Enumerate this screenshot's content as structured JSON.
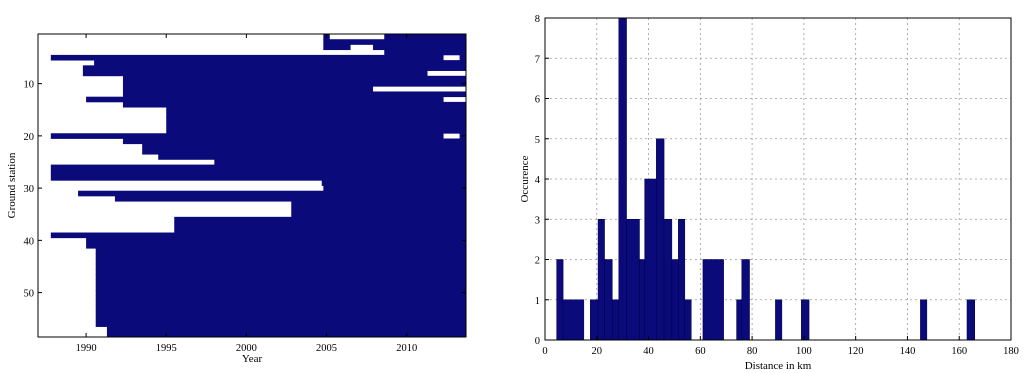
{
  "chart_data": [
    {
      "type": "heatmap",
      "title": "",
      "xlabel": "Year",
      "ylabel": "Ground station",
      "xlim": [
        1987,
        2013.7
      ],
      "ylim": [
        0.5,
        58.5
      ],
      "y_inverted": true,
      "grid": false,
      "xticks": [
        1990,
        1995,
        2000,
        2005,
        2010
      ],
      "xtick_labels": [
        "1990",
        "1995",
        "2000",
        "2005",
        "2010"
      ],
      "yticks": [
        10,
        20,
        30,
        40,
        50
      ],
      "ytick_labels": [
        "10",
        "20",
        "30",
        "40",
        "50"
      ],
      "fill_color": "#0a0a7a",
      "description_of_values": "Each row is a ground station; filled intervals are years with data.",
      "rows": [
        {
          "station": 1,
          "intervals": [
            [
              2004.8,
              2005.2
            ],
            [
              2008.6,
              2013.7
            ]
          ]
        },
        {
          "station": 2,
          "intervals": [
            [
              2004.8,
              2013.7
            ]
          ]
        },
        {
          "station": 3,
          "intervals": [
            [
              2004.8,
              2006.5
            ],
            [
              2007.9,
              2013.7
            ]
          ]
        },
        {
          "station": 4,
          "intervals": [
            [
              2008.6,
              2013.7
            ]
          ]
        },
        {
          "station": 5,
          "intervals": [
            [
              1987.8,
              2012.3
            ],
            [
              2013.3,
              2013.7
            ]
          ]
        },
        {
          "station": 6,
          "intervals": [
            [
              1990.5,
              2013.7
            ]
          ]
        },
        {
          "station": 7,
          "intervals": [
            [
              1989.8,
              2013.7
            ]
          ]
        },
        {
          "station": 8,
          "intervals": [
            [
              1989.8,
              2011.3
            ]
          ]
        },
        {
          "station": 9,
          "intervals": [
            [
              1992.3,
              2011.3
            ],
            [
              2011.3,
              2013.7
            ]
          ]
        },
        {
          "station": 10,
          "intervals": [
            [
              1992.3,
              2013.7
            ]
          ]
        },
        {
          "station": 11,
          "intervals": [
            [
              1992.3,
              2007.9
            ]
          ]
        },
        {
          "station": 12,
          "intervals": [
            [
              1992.3,
              2013.7
            ]
          ]
        },
        {
          "station": 13,
          "intervals": [
            [
              1990.0,
              2012.3
            ]
          ]
        },
        {
          "station": 14,
          "intervals": [
            [
              1992.3,
              2013.7
            ]
          ]
        },
        {
          "station": 15,
          "intervals": [
            [
              1995.0,
              2013.7
            ]
          ]
        },
        {
          "station": 16,
          "intervals": [
            [
              1995.0,
              2013.7
            ]
          ]
        },
        {
          "station": 17,
          "intervals": [
            [
              1995.0,
              2013.7
            ]
          ]
        },
        {
          "station": 18,
          "intervals": [
            [
              1995.0,
              2013.7
            ]
          ]
        },
        {
          "station": 19,
          "intervals": [
            [
              1995.0,
              2013.7
            ]
          ]
        },
        {
          "station": 20,
          "intervals": [
            [
              1987.8,
              2012.3
            ],
            [
              2013.3,
              2013.7
            ]
          ]
        },
        {
          "station": 21,
          "intervals": [
            [
              1992.3,
              2013.7
            ]
          ]
        },
        {
          "station": 22,
          "intervals": [
            [
              1993.5,
              2013.7
            ]
          ]
        },
        {
          "station": 23,
          "intervals": [
            [
              1993.5,
              2013.7
            ]
          ]
        },
        {
          "station": 24,
          "intervals": [
            [
              1994.5,
              2013.7
            ]
          ]
        },
        {
          "station": 25,
          "intervals": [
            [
              1998.0,
              2013.7
            ]
          ]
        },
        {
          "station": 26,
          "intervals": [
            [
              1987.8,
              2013.7
            ]
          ]
        },
        {
          "station": 27,
          "intervals": [
            [
              1987.8,
              2013.7
            ]
          ]
        },
        {
          "station": 28,
          "intervals": [
            [
              1987.8,
              2013.7
            ]
          ]
        },
        {
          "station": 29,
          "intervals": [
            [
              2004.7,
              2013.7
            ]
          ]
        },
        {
          "station": 30,
          "intervals": [
            [
              2004.8,
              2013.7
            ]
          ]
        },
        {
          "station": 31,
          "intervals": [
            [
              1989.5,
              2013.7
            ]
          ]
        },
        {
          "station": 32,
          "intervals": [
            [
              1991.8,
              2013.7
            ]
          ]
        },
        {
          "station": 33,
          "intervals": [
            [
              2002.8,
              2013.7
            ]
          ]
        },
        {
          "station": 34,
          "intervals": [
            [
              2002.8,
              2013.7
            ]
          ]
        },
        {
          "station": 35,
          "intervals": [
            [
              2002.8,
              2013.7
            ]
          ]
        },
        {
          "station": 36,
          "intervals": [
            [
              1995.5,
              2013.7
            ]
          ]
        },
        {
          "station": 37,
          "intervals": [
            [
              1995.5,
              2013.7
            ]
          ]
        },
        {
          "station": 38,
          "intervals": [
            [
              1995.5,
              2013.7
            ]
          ]
        },
        {
          "station": 39,
          "intervals": [
            [
              1987.8,
              2013.7
            ]
          ]
        },
        {
          "station": 40,
          "intervals": [
            [
              1990.0,
              2013.7
            ]
          ]
        },
        {
          "station": 41,
          "intervals": [
            [
              1990.0,
              2013.7
            ]
          ]
        },
        {
          "station": 42,
          "intervals": [
            [
              1990.6,
              2013.7
            ]
          ]
        },
        {
          "station": 43,
          "intervals": [
            [
              1990.6,
              2013.7
            ]
          ]
        },
        {
          "station": 44,
          "intervals": [
            [
              1990.6,
              2013.7
            ]
          ]
        },
        {
          "station": 45,
          "intervals": [
            [
              1990.6,
              2013.7
            ]
          ]
        },
        {
          "station": 46,
          "intervals": [
            [
              1990.6,
              2013.7
            ]
          ]
        },
        {
          "station": 47,
          "intervals": [
            [
              1990.6,
              2013.7
            ]
          ]
        },
        {
          "station": 48,
          "intervals": [
            [
              1990.6,
              2013.7
            ]
          ]
        },
        {
          "station": 49,
          "intervals": [
            [
              1990.6,
              2013.7
            ]
          ]
        },
        {
          "station": 50,
          "intervals": [
            [
              1990.6,
              2013.7
            ]
          ]
        },
        {
          "station": 51,
          "intervals": [
            [
              1990.6,
              2013.7
            ]
          ]
        },
        {
          "station": 52,
          "intervals": [
            [
              1990.6,
              2013.7
            ]
          ]
        },
        {
          "station": 53,
          "intervals": [
            [
              1990.6,
              2013.7
            ]
          ]
        },
        {
          "station": 54,
          "intervals": [
            [
              1990.6,
              2013.7
            ]
          ]
        },
        {
          "station": 55,
          "intervals": [
            [
              1990.6,
              2013.7
            ]
          ]
        },
        {
          "station": 56,
          "intervals": [
            [
              1990.6,
              2013.7
            ]
          ]
        },
        {
          "station": 57,
          "intervals": [
            [
              1991.3,
              2013.7
            ]
          ]
        },
        {
          "station": 58,
          "intervals": [
            [
              1991.3,
              2013.7
            ]
          ]
        }
      ]
    },
    {
      "type": "bar",
      "title": "",
      "xlabel": "Distance in km",
      "ylabel": "Occurence",
      "xlim": [
        0,
        180
      ],
      "ylim": [
        0,
        8
      ],
      "grid": true,
      "xticks": [
        0,
        20,
        40,
        60,
        80,
        100,
        120,
        140,
        160,
        180
      ],
      "xtick_labels": [
        "0",
        "20",
        "40",
        "60",
        "80",
        "100",
        "120",
        "140",
        "160",
        "180"
      ],
      "yticks": [
        0,
        1,
        2,
        3,
        4,
        5,
        6,
        7,
        8
      ],
      "ytick_labels": [
        "0",
        "1",
        "2",
        "3",
        "4",
        "5",
        "6",
        "7",
        "8"
      ],
      "bar_color": "#0a0a7a",
      "bins": [
        {
          "x0": 4.5,
          "x1": 7,
          "value": 2
        },
        {
          "x0": 7,
          "x1": 15,
          "value": 1
        },
        {
          "x0": 17.5,
          "x1": 20.5,
          "value": 1
        },
        {
          "x0": 20.5,
          "x1": 23,
          "value": 3
        },
        {
          "x0": 23,
          "x1": 26,
          "value": 2
        },
        {
          "x0": 26,
          "x1": 28.5,
          "value": 1
        },
        {
          "x0": 28.5,
          "x1": 31.5,
          "value": 8
        },
        {
          "x0": 31.5,
          "x1": 36.5,
          "value": 3
        },
        {
          "x0": 36.5,
          "x1": 38.5,
          "value": 2
        },
        {
          "x0": 38.5,
          "x1": 43,
          "value": 4
        },
        {
          "x0": 43,
          "x1": 46,
          "value": 5
        },
        {
          "x0": 46,
          "x1": 49,
          "value": 3
        },
        {
          "x0": 49,
          "x1": 51.5,
          "value": 2
        },
        {
          "x0": 51.5,
          "x1": 54,
          "value": 3
        },
        {
          "x0": 54,
          "x1": 56.5,
          "value": 1
        },
        {
          "x0": 61,
          "x1": 69,
          "value": 2
        },
        {
          "x0": 74,
          "x1": 76,
          "value": 1
        },
        {
          "x0": 76,
          "x1": 79,
          "value": 2
        },
        {
          "x0": 89,
          "x1": 91.5,
          "value": 1
        },
        {
          "x0": 99,
          "x1": 102,
          "value": 1
        },
        {
          "x0": 145,
          "x1": 147.5,
          "value": 1
        },
        {
          "x0": 163,
          "x1": 166,
          "value": 1
        }
      ]
    }
  ]
}
